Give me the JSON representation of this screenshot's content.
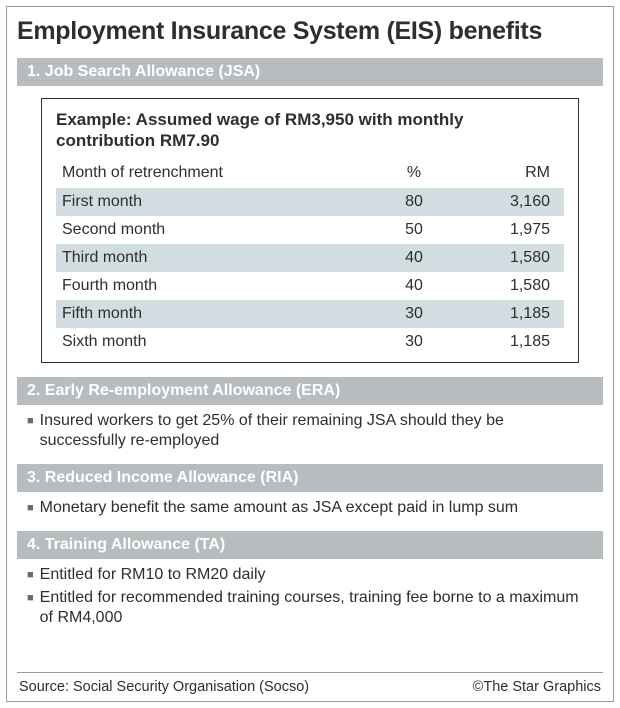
{
  "title": "Employment Insurance System (EIS) benefits",
  "colors": {
    "header_bg": "#b7bcbe",
    "header_text": "#ffffff",
    "row_shade": "#d1dde1",
    "text": "#2e2e2e",
    "border": "#9a9a9a",
    "bullet": "#6a6a6a"
  },
  "sections": {
    "jsa": {
      "header": "1. Job Search Allowance (JSA)",
      "example_title": "Example: Assumed wage of RM3,950 with monthly contribution RM7.90",
      "table": {
        "columns": [
          "Month of retrenchment",
          "%",
          "RM"
        ],
        "rows": [
          {
            "month": "First month",
            "pct": "80",
            "rm": "3,160",
            "shade": true
          },
          {
            "month": "Second month",
            "pct": "50",
            "rm": "1,975",
            "shade": false
          },
          {
            "month": "Third month",
            "pct": "40",
            "rm": "1,580",
            "shade": true
          },
          {
            "month": "Fourth month",
            "pct": "40",
            "rm": "1,580",
            "shade": false
          },
          {
            "month": "Fifth month",
            "pct": "30",
            "rm": "1,185",
            "shade": true
          },
          {
            "month": "Sixth month",
            "pct": "30",
            "rm": "1,185",
            "shade": false
          }
        ]
      }
    },
    "era": {
      "header": "2. Early Re-employment Allowance (ERA)",
      "bullets": [
        "Insured workers to get 25% of their remaining JSA should they be successfully re-employed"
      ]
    },
    "ria": {
      "header": "3. Reduced Income Allowance (RIA)",
      "bullets": [
        "Monetary benefit the same amount as JSA except paid in lump sum"
      ]
    },
    "ta": {
      "header": "4. Training Allowance (TA)",
      "bullets": [
        "Entitled for RM10 to RM20 daily",
        "Entitled for recommended training courses, training fee borne to a maximum of RM4,000"
      ]
    }
  },
  "footer": {
    "source": "Source: Social Security Organisation (Socso)",
    "credit": "©The Star Graphics"
  }
}
